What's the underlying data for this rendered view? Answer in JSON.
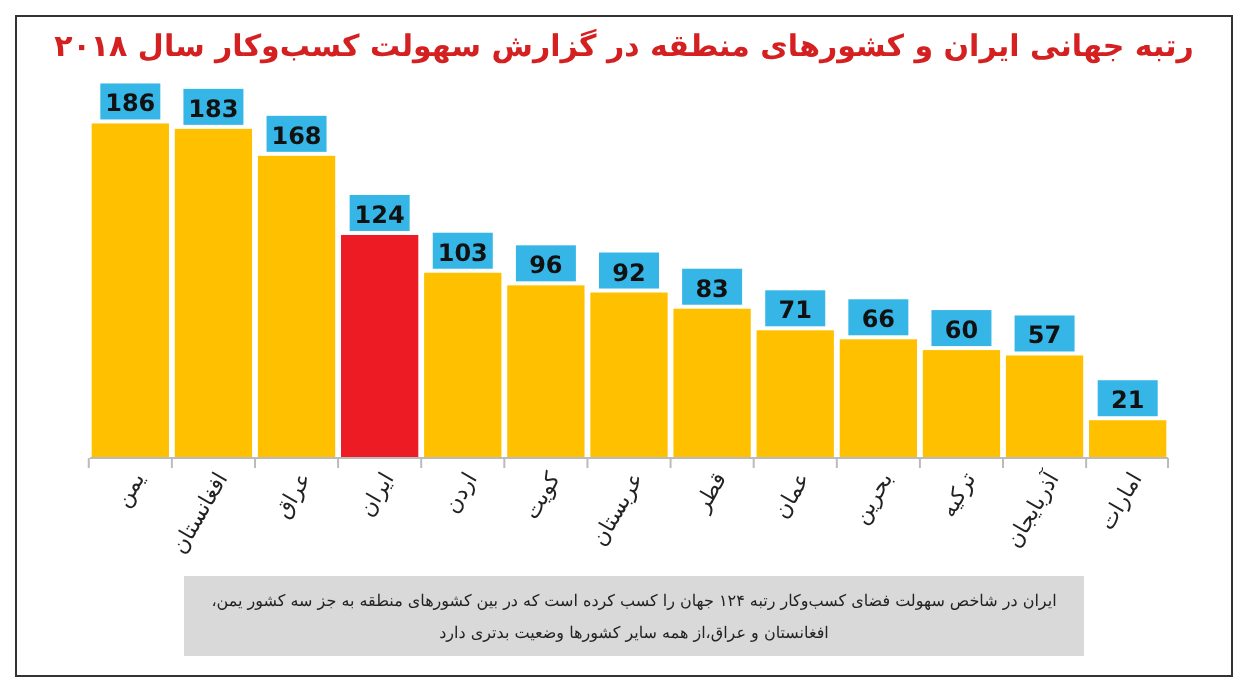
{
  "chart_data": {
    "type": "bar",
    "title": "رتبه جهانی ایران و کشورهای منطقه در گزارش سهولت کسب‌وکار سال ۲۰۱۸",
    "categories": [
      "یمن",
      "افغانستان",
      "عراق",
      "ایران",
      "اردن",
      "کویت",
      "عربستان",
      "قطر",
      "عمان",
      "بحرین",
      "ترکیه",
      "آذربایجان",
      "امارات"
    ],
    "values": [
      186,
      183,
      168,
      124,
      103,
      96,
      92,
      83,
      71,
      66,
      60,
      57,
      21
    ],
    "colors": [
      "#ffc000",
      "#ffc000",
      "#ffc000",
      "#ed1c24",
      "#ffc000",
      "#ffc000",
      "#ffc000",
      "#ffc000",
      "#ffc000",
      "#ffc000",
      "#ffc000",
      "#ffc000",
      "#ffc000"
    ],
    "data_labels": true,
    "annotations": [
      "ایران در شاخص سهولت فضای کسب‌وکار رتبه ۱۲۴ جهان را کسب کرده است که در بین کشورهای منطقه به جز سه کشور یمن،",
      "افغانستان و عراق،از همه سایر کشورها  وضعیت بدتری دارد"
    ]
  }
}
